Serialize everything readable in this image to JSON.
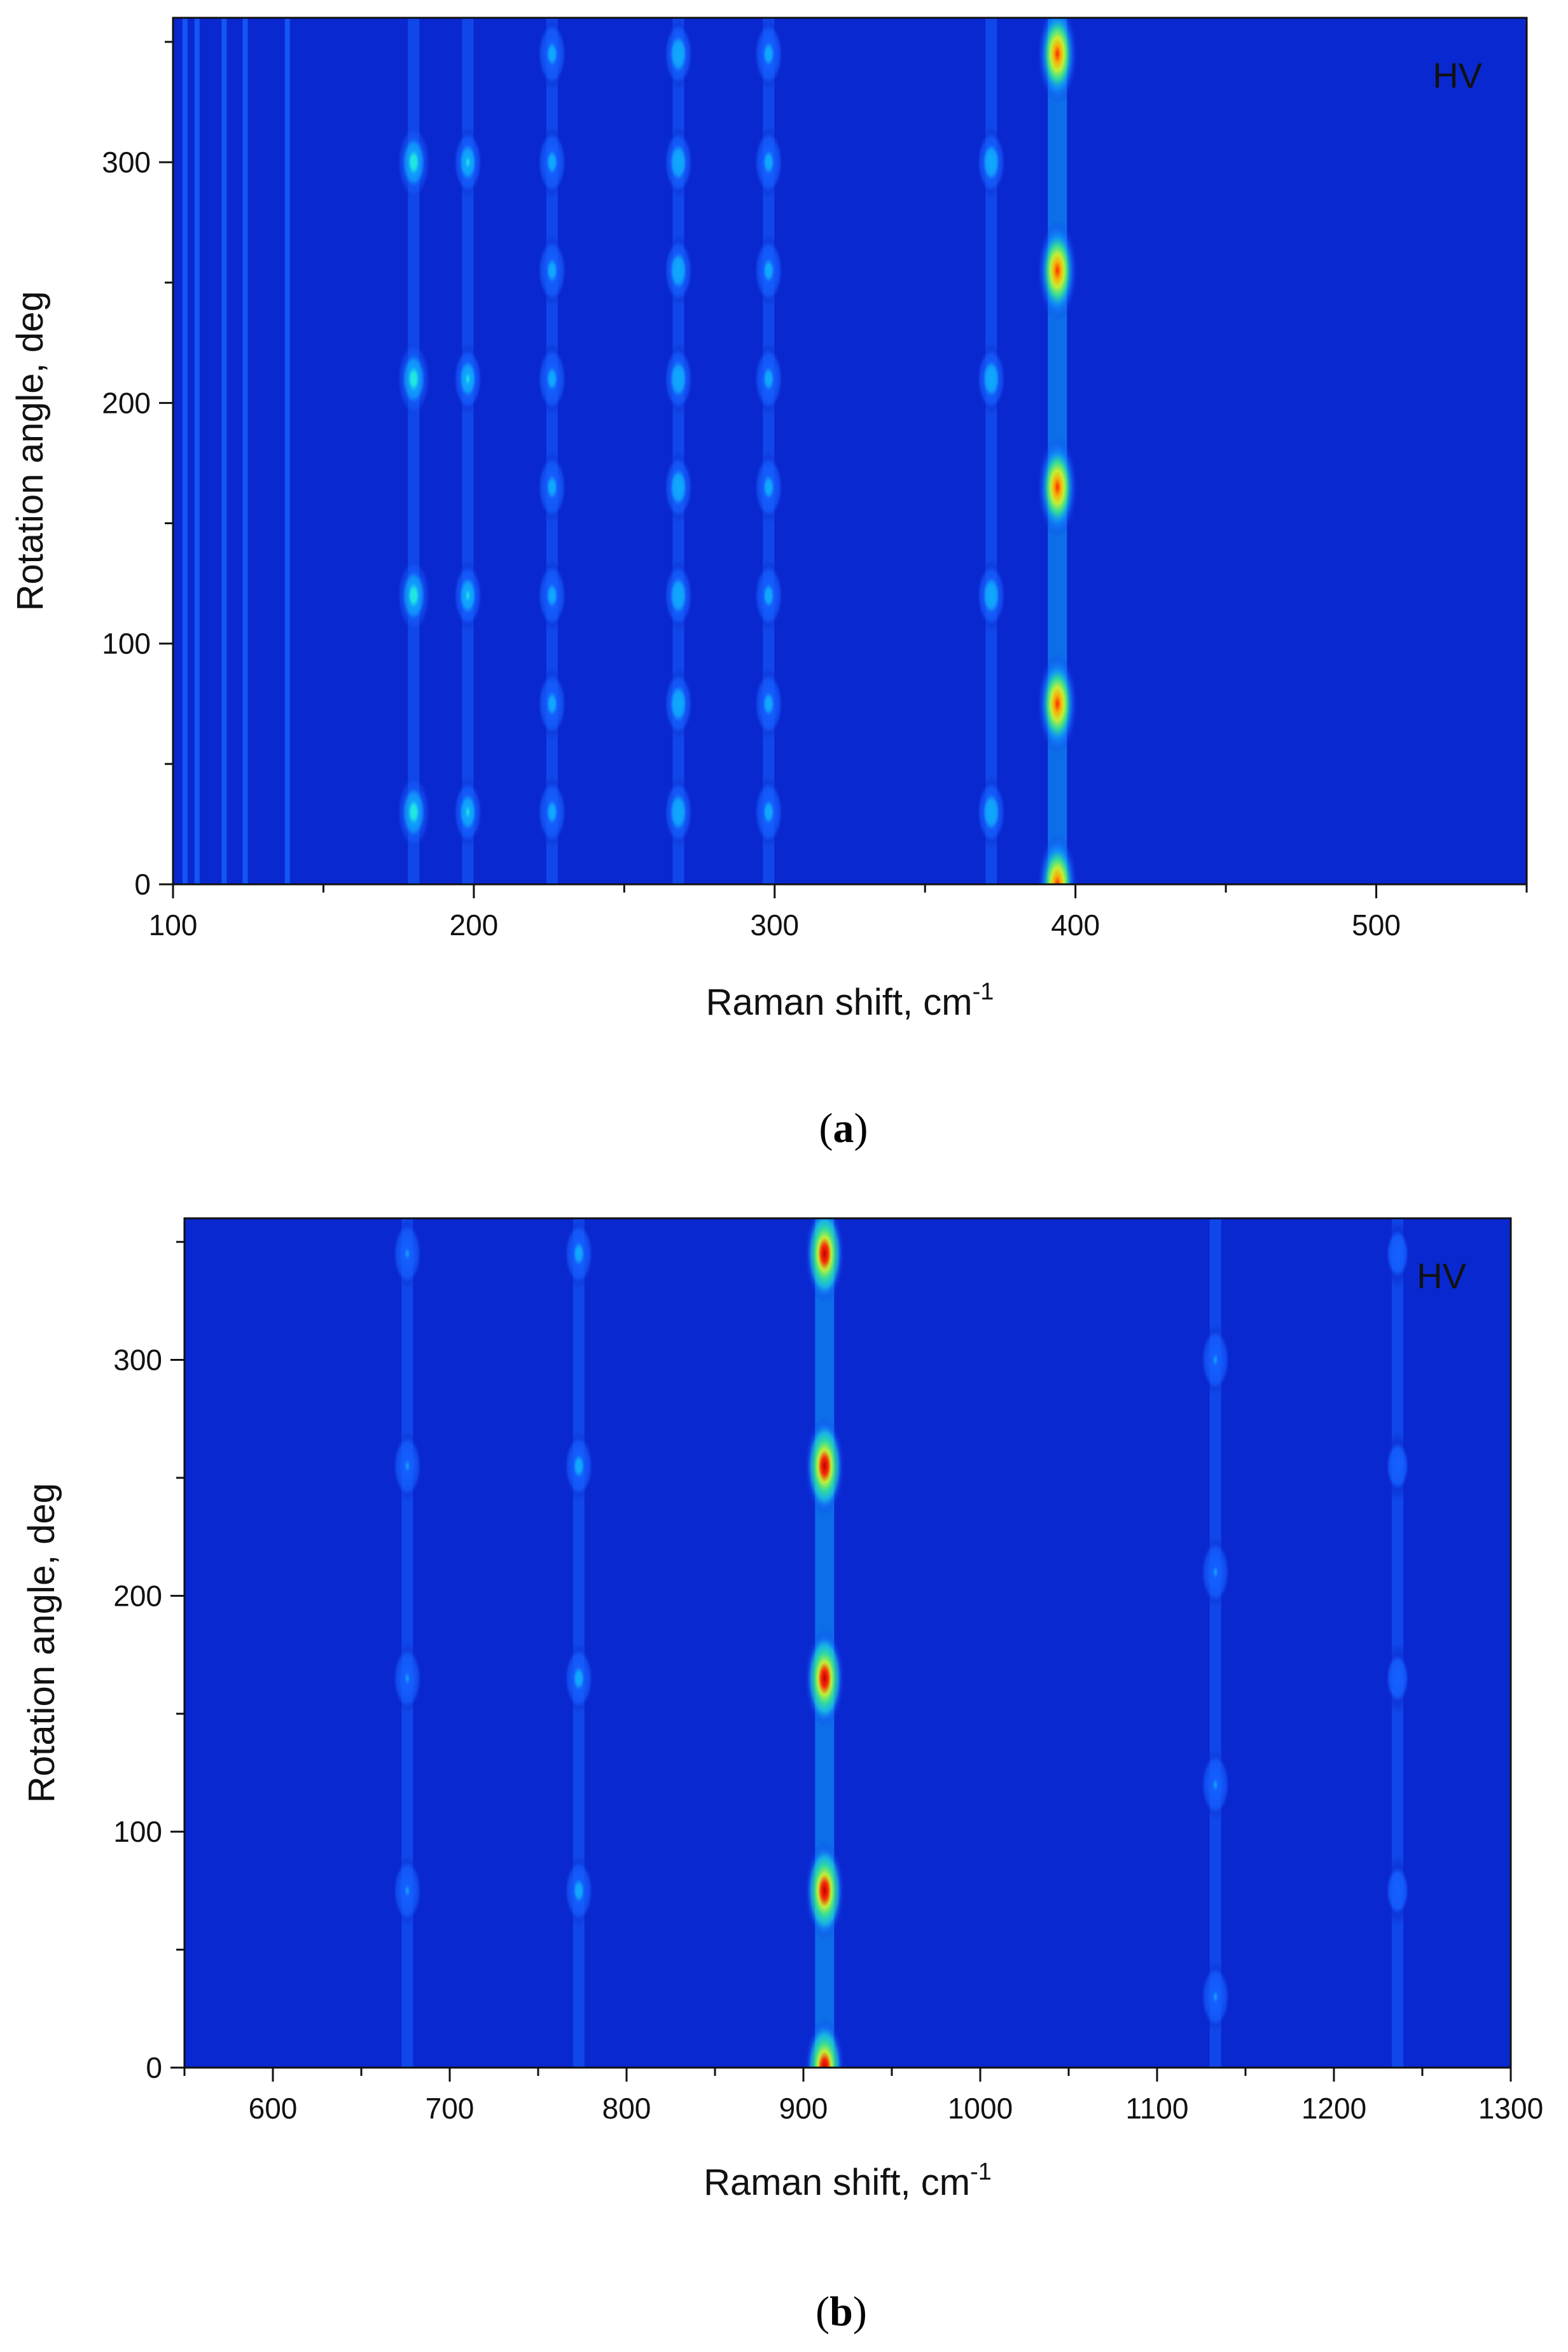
{
  "chart_data": [
    {
      "type": "heatmap",
      "panel": "a",
      "panel_label": "a",
      "annotation": "HV",
      "xlabel": "Raman shift, cm",
      "xlabel_superscript": "-1",
      "ylabel": "Rotation angle, deg",
      "xlim": [
        100,
        550
      ],
      "ylim": [
        0,
        360
      ],
      "x_ticks": [
        100,
        200,
        300,
        400,
        500
      ],
      "y_ticks": [
        0,
        100,
        200,
        300
      ],
      "background_level": 0.05,
      "line_features": [
        {
          "x": 104,
          "level": 0.12
        },
        {
          "x": 108,
          "level": 0.1
        },
        {
          "x": 117,
          "level": 0.1
        },
        {
          "x": 124,
          "level": 0.1
        },
        {
          "x": 138,
          "level": 0.12
        }
      ],
      "peaks": [
        {
          "x": 180,
          "angles": [
            30,
            120,
            210,
            300
          ],
          "level": 0.42
        },
        {
          "x": 198,
          "angles": [
            30,
            120,
            210,
            300
          ],
          "level": 0.36
        },
        {
          "x": 226,
          "angles": [
            30,
            75,
            120,
            165,
            210,
            255,
            300,
            345
          ],
          "level": 0.26
        },
        {
          "x": 268,
          "angles": [
            30,
            75,
            120,
            165,
            210,
            255,
            300,
            345
          ],
          "level": 0.3
        },
        {
          "x": 298,
          "angles": [
            30,
            75,
            120,
            165,
            210,
            255,
            300,
            345
          ],
          "level": 0.24
        },
        {
          "x": 372,
          "angles": [
            30,
            120,
            210,
            300
          ],
          "level": 0.3
        },
        {
          "x": 394,
          "angles": [
            0,
            75,
            165,
            255,
            345
          ],
          "level": 0.9
        }
      ],
      "colormap": [
        "#0a28d0",
        "#1560ff",
        "#10a8ff",
        "#20e8e0",
        "#40ff80",
        "#d8ff20",
        "#ffb000",
        "#ff2800",
        "#c00000"
      ]
    },
    {
      "type": "heatmap",
      "panel": "b",
      "panel_label": "b",
      "annotation": "HV",
      "xlabel": "Raman shift, cm",
      "xlabel_superscript": "-1",
      "ylabel": "Rotation angle, deg",
      "xlim": [
        550,
        1300
      ],
      "ylim": [
        0,
        360
      ],
      "x_ticks": [
        600,
        700,
        800,
        900,
        1000,
        1100,
        1200,
        1300
      ],
      "y_ticks": [
        0,
        100,
        200,
        300
      ],
      "background_level": 0.05,
      "line_features": [],
      "peaks": [
        {
          "x": 676,
          "angles": [
            75,
            165,
            255,
            345
          ],
          "level": 0.2
        },
        {
          "x": 773,
          "angles": [
            75,
            165,
            255,
            345
          ],
          "level": 0.24
        },
        {
          "x": 912,
          "angles": [
            0,
            75,
            165,
            255,
            345
          ],
          "level": 1.0
        },
        {
          "x": 1133,
          "angles": [
            30,
            120,
            210,
            300
          ],
          "level": 0.22
        },
        {
          "x": 1236,
          "angles": [
            75,
            165,
            255,
            345
          ],
          "level": 0.16
        }
      ],
      "colormap": [
        "#0a28d0",
        "#1560ff",
        "#10a8ff",
        "#20e8e0",
        "#40ff80",
        "#d8ff20",
        "#ffb000",
        "#ff2800",
        "#c00000"
      ]
    }
  ]
}
